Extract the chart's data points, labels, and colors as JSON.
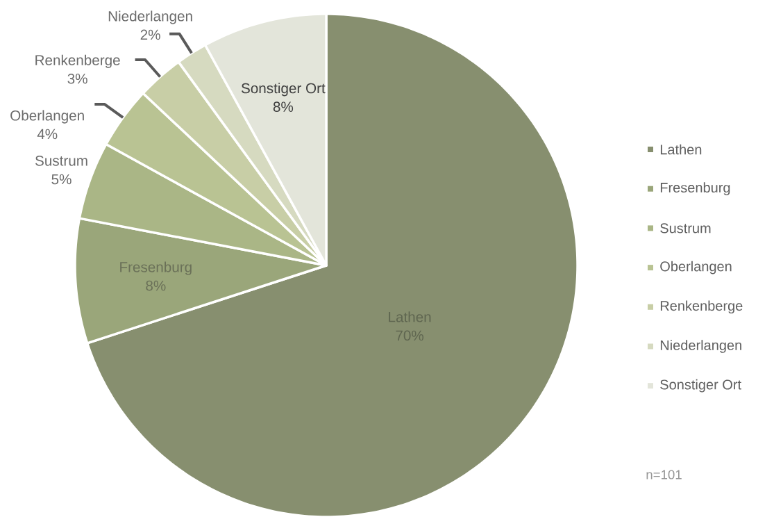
{
  "chart_data": {
    "type": "pie",
    "categories": [
      "Lathen",
      "Fresenburg",
      "Sustrum",
      "Oberlangen",
      "Renkenberge",
      "Niederlangen",
      "Sonstiger Ort"
    ],
    "values": [
      70,
      8,
      5,
      4,
      3,
      2,
      8
    ],
    "value_labels": [
      "70%",
      "8%",
      "5%",
      "4%",
      "3%",
      "2%",
      "8%"
    ],
    "colors": [
      "#878f6f",
      "#9aa67a",
      "#aab686",
      "#b9c393",
      "#c8cea6",
      "#d6dac0",
      "#e3e5da"
    ],
    "legend": "right",
    "annotations": [
      "n=101"
    ]
  }
}
